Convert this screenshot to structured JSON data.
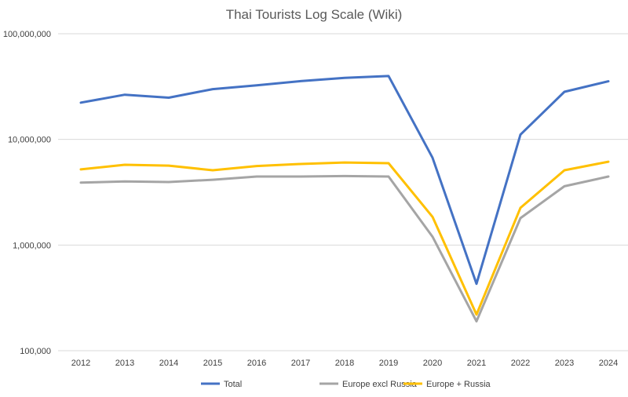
{
  "chart_data": {
    "type": "line",
    "title": "Thai Tourists Log Scale (Wiki)",
    "xlabel": "",
    "ylabel": "",
    "yscale": "log",
    "ylim": [
      100000,
      100000000
    ],
    "y_ticks": [
      100000,
      1000000,
      10000000,
      100000000
    ],
    "y_tick_labels": [
      "100,000",
      "1,000,000",
      "10,000,000",
      "100,000,000"
    ],
    "grid": true,
    "legend_position": "bottom",
    "categories": [
      "2012",
      "2013",
      "2014",
      "2015",
      "2016",
      "2017",
      "2018",
      "2019",
      "2020",
      "2021",
      "2022",
      "2023",
      "2024"
    ],
    "series": [
      {
        "name": "Total",
        "color": "#4472c4",
        "values": [
          22300000,
          26500000,
          24800000,
          29900000,
          32500000,
          35600000,
          38200000,
          39800000,
          6700000,
          430000,
          11100000,
          28200000,
          35500000
        ]
      },
      {
        "name": "Europe excl Russia",
        "color": "#a5a5a5",
        "values": [
          3900000,
          4000000,
          3950000,
          4150000,
          4450000,
          4450000,
          4500000,
          4450000,
          1200000,
          190000,
          1800000,
          3600000,
          4450000
        ]
      },
      {
        "name": "Europe + Russia",
        "color": "#ffc000",
        "values": [
          5200000,
          5750000,
          5650000,
          5100000,
          5600000,
          5850000,
          6050000,
          5950000,
          1850000,
          220000,
          2250000,
          5100000,
          6150000
        ]
      }
    ]
  }
}
